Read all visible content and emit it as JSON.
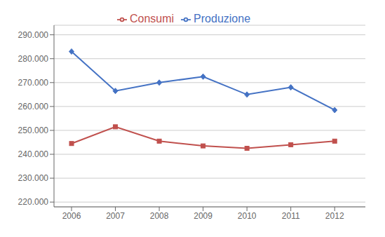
{
  "chart_data": {
    "type": "line",
    "x": [
      2006,
      2007,
      2008,
      2009,
      2010,
      2011,
      2012
    ],
    "series": [
      {
        "name": "Produzione",
        "color": "#4472C4",
        "marker": "diamond",
        "values": [
          283000,
          266500,
          270000,
          272500,
          265000,
          268000,
          258500
        ]
      },
      {
        "name": "Consumi",
        "color": "#C0504D",
        "marker": "square",
        "values": [
          244500,
          251500,
          245500,
          243500,
          242500,
          244000,
          245500
        ]
      }
    ],
    "xlim": [
      2005.6,
      2012.7
    ],
    "xticks": [
      2006,
      2007,
      2008,
      2009,
      2010,
      2011,
      2012
    ],
    "ylim": [
      218000,
      294000
    ],
    "yticks": [
      {
        "value": 220000,
        "label": "220.000"
      },
      {
        "value": 230000,
        "label": "230.000"
      },
      {
        "value": 240000,
        "label": "240.000"
      },
      {
        "value": 250000,
        "label": "250.000"
      },
      {
        "value": 260000,
        "label": "260.000"
      },
      {
        "value": 270000,
        "label": "270.000"
      },
      {
        "value": 280000,
        "label": "280.000"
      },
      {
        "value": 290000,
        "label": "290.000"
      }
    ],
    "grid": true,
    "legend": "top"
  }
}
